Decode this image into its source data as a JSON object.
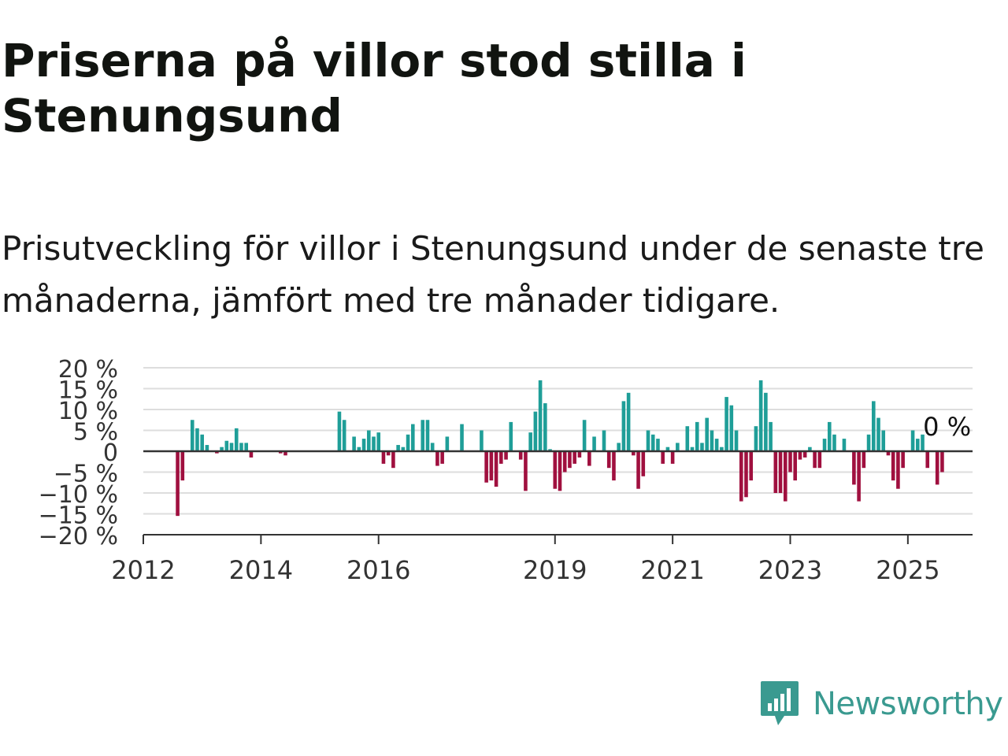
{
  "title": "Priserna på villor stod stilla i Stenungsund",
  "subtitle": "Prisutveckling för villor i Stenungsund under de senaste tre månaderna, jämfört med tre månader tidigare.",
  "brand": {
    "name": "Newsworthy",
    "icon": "newsworthy-logo-icon",
    "color": "#3a9a90"
  },
  "colors": {
    "positive": "#1f9e98",
    "negative": "#a0103f",
    "grid": "#dddddd",
    "zero_line": "#333333"
  },
  "chart_data": {
    "type": "bar",
    "ylabel": "",
    "xlabel": "",
    "ylim": [
      -20,
      20
    ],
    "y_ticks": [
      20,
      15,
      10,
      5,
      0,
      -5,
      -10,
      -15,
      -20
    ],
    "y_tick_labels": [
      "20 %",
      "15 %",
      "10 %",
      "5 %",
      "0",
      "−5 %",
      "−10 %",
      "−15 %",
      "−20 %"
    ],
    "x_ticks": [
      "2012",
      "2014",
      "2016",
      "2019",
      "2021",
      "2023",
      "2025"
    ],
    "x_tick_values": [
      2012.0,
      2014.0,
      2016.0,
      2019.0,
      2021.0,
      2023.0,
      2025.0
    ],
    "grid": true,
    "last_value_label": "0 %",
    "series": [
      {
        "values": [
          {
            "x": "2012-08",
            "y": -15.5
          },
          {
            "x": "2012-09",
            "y": -7
          },
          {
            "x": "2012-11",
            "y": 7.5
          },
          {
            "x": "2012-12",
            "y": 5.5
          },
          {
            "x": "2013-01",
            "y": 4
          },
          {
            "x": "2013-02",
            "y": 1.5
          },
          {
            "x": "2013-04",
            "y": -0.5
          },
          {
            "x": "2013-05",
            "y": 1
          },
          {
            "x": "2013-06",
            "y": 2.5
          },
          {
            "x": "2013-07",
            "y": 2
          },
          {
            "x": "2013-08",
            "y": 5.5
          },
          {
            "x": "2013-09",
            "y": 2
          },
          {
            "x": "2013-10",
            "y": 2
          },
          {
            "x": "2013-11",
            "y": -1.5
          },
          {
            "x": "2014-05",
            "y": -0.5
          },
          {
            "x": "2014-06",
            "y": -1
          },
          {
            "x": "2015-05",
            "y": 9.5
          },
          {
            "x": "2015-06",
            "y": 7.5
          },
          {
            "x": "2015-08",
            "y": 3.5
          },
          {
            "x": "2015-09",
            "y": 1
          },
          {
            "x": "2015-10",
            "y": 3
          },
          {
            "x": "2015-11",
            "y": 5
          },
          {
            "x": "2015-12",
            "y": 3.5
          },
          {
            "x": "2016-01",
            "y": 4.5
          },
          {
            "x": "2016-02",
            "y": -3
          },
          {
            "x": "2016-03",
            "y": -1
          },
          {
            "x": "2016-04",
            "y": -4
          },
          {
            "x": "2016-05",
            "y": 1.5
          },
          {
            "x": "2016-06",
            "y": 1
          },
          {
            "x": "2016-07",
            "y": 4
          },
          {
            "x": "2016-08",
            "y": 6.5
          },
          {
            "x": "2016-10",
            "y": 7.5
          },
          {
            "x": "2016-11",
            "y": 7.5
          },
          {
            "x": "2016-12",
            "y": 2
          },
          {
            "x": "2017-01",
            "y": -3.5
          },
          {
            "x": "2017-02",
            "y": -3
          },
          {
            "x": "2017-03",
            "y": 3.5
          },
          {
            "x": "2017-06",
            "y": 6.5
          },
          {
            "x": "2017-10",
            "y": 5
          },
          {
            "x": "2017-11",
            "y": -7.5
          },
          {
            "x": "2017-12",
            "y": -7
          },
          {
            "x": "2018-01",
            "y": -8.5
          },
          {
            "x": "2018-02",
            "y": -3
          },
          {
            "x": "2018-03",
            "y": -2
          },
          {
            "x": "2018-04",
            "y": 7
          },
          {
            "x": "2018-06",
            "y": -2
          },
          {
            "x": "2018-07",
            "y": -9.5
          },
          {
            "x": "2018-08",
            "y": 4.5
          },
          {
            "x": "2018-09",
            "y": 9.5
          },
          {
            "x": "2018-10",
            "y": 17
          },
          {
            "x": "2018-11",
            "y": 11.5
          },
          {
            "x": "2018-12",
            "y": 0.5
          },
          {
            "x": "2019-01",
            "y": -9
          },
          {
            "x": "2019-02",
            "y": -9.5
          },
          {
            "x": "2019-03",
            "y": -5
          },
          {
            "x": "2019-04",
            "y": -4
          },
          {
            "x": "2019-05",
            "y": -3
          },
          {
            "x": "2019-06",
            "y": -1.5
          },
          {
            "x": "2019-07",
            "y": 7.5
          },
          {
            "x": "2019-08",
            "y": -3.5
          },
          {
            "x": "2019-09",
            "y": 3.5
          },
          {
            "x": "2019-11",
            "y": 5
          },
          {
            "x": "2019-12",
            "y": -4
          },
          {
            "x": "2020-01",
            "y": -7
          },
          {
            "x": "2020-02",
            "y": 2
          },
          {
            "x": "2020-03",
            "y": 12
          },
          {
            "x": "2020-04",
            "y": 14
          },
          {
            "x": "2020-05",
            "y": -1
          },
          {
            "x": "2020-06",
            "y": -9
          },
          {
            "x": "2020-07",
            "y": -6
          },
          {
            "x": "2020-08",
            "y": 5
          },
          {
            "x": "2020-09",
            "y": 4
          },
          {
            "x": "2020-10",
            "y": 3
          },
          {
            "x": "2020-11",
            "y": -3
          },
          {
            "x": "2020-12",
            "y": 1
          },
          {
            "x": "2021-01",
            "y": -3
          },
          {
            "x": "2021-02",
            "y": 2
          },
          {
            "x": "2021-04",
            "y": 6
          },
          {
            "x": "2021-05",
            "y": 1
          },
          {
            "x": "2021-06",
            "y": 7
          },
          {
            "x": "2021-07",
            "y": 2
          },
          {
            "x": "2021-08",
            "y": 8
          },
          {
            "x": "2021-09",
            "y": 5
          },
          {
            "x": "2021-10",
            "y": 3
          },
          {
            "x": "2021-11",
            "y": 1
          },
          {
            "x": "2021-12",
            "y": 13
          },
          {
            "x": "2022-01",
            "y": 11
          },
          {
            "x": "2022-02",
            "y": 5
          },
          {
            "x": "2022-03",
            "y": -12
          },
          {
            "x": "2022-04",
            "y": -11
          },
          {
            "x": "2022-05",
            "y": -7
          },
          {
            "x": "2022-06",
            "y": 6
          },
          {
            "x": "2022-07",
            "y": 17
          },
          {
            "x": "2022-08",
            "y": 14
          },
          {
            "x": "2022-09",
            "y": 7
          },
          {
            "x": "2022-10",
            "y": -10
          },
          {
            "x": "2022-11",
            "y": -10
          },
          {
            "x": "2022-12",
            "y": -12
          },
          {
            "x": "2023-01",
            "y": -5
          },
          {
            "x": "2023-02",
            "y": -7
          },
          {
            "x": "2023-03",
            "y": -2
          },
          {
            "x": "2023-04",
            "y": -1.5
          },
          {
            "x": "2023-05",
            "y": 1
          },
          {
            "x": "2023-06",
            "y": -4
          },
          {
            "x": "2023-07",
            "y": -4
          },
          {
            "x": "2023-08",
            "y": 3
          },
          {
            "x": "2023-09",
            "y": 7
          },
          {
            "x": "2023-10",
            "y": 4
          },
          {
            "x": "2023-12",
            "y": 3
          },
          {
            "x": "2024-02",
            "y": -8
          },
          {
            "x": "2024-03",
            "y": -12
          },
          {
            "x": "2024-04",
            "y": -4
          },
          {
            "x": "2024-05",
            "y": 4
          },
          {
            "x": "2024-06",
            "y": 12
          },
          {
            "x": "2024-07",
            "y": 8
          },
          {
            "x": "2024-08",
            "y": 5
          },
          {
            "x": "2024-09",
            "y": -1
          },
          {
            "x": "2024-10",
            "y": -7
          },
          {
            "x": "2024-11",
            "y": -9
          },
          {
            "x": "2024-12",
            "y": -4
          },
          {
            "x": "2025-02",
            "y": 5
          },
          {
            "x": "2025-03",
            "y": 3
          },
          {
            "x": "2025-04",
            "y": 4
          },
          {
            "x": "2025-05",
            "y": -4
          },
          {
            "x": "2025-07",
            "y": -8
          },
          {
            "x": "2025-08",
            "y": -5
          },
          {
            "x": "2025-09",
            "y": 0
          }
        ]
      }
    ]
  }
}
